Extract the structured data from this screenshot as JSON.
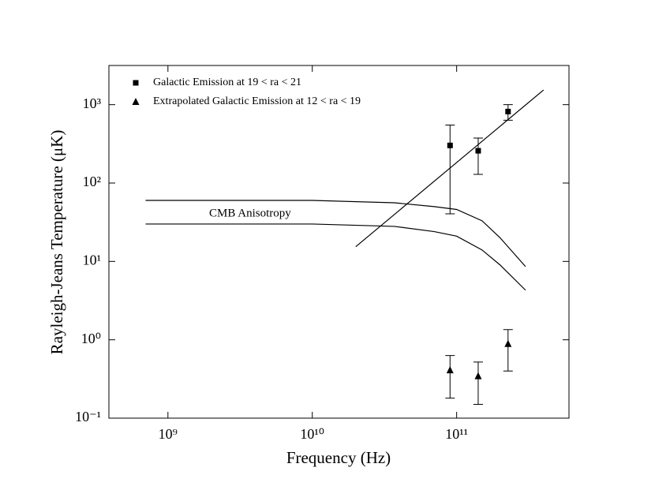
{
  "chart_data": {
    "type": "scatter",
    "xlabel": "Frequency (Hz)",
    "ylabel": "Rayleigh-Jeans Temperature (μK)",
    "log_x": true,
    "log_y": true,
    "legend": "upper left",
    "xlim": [
      390000000.0,
      600000000000.0
    ],
    "ylim": [
      0.1,
      3162
    ],
    "xticks": [
      {
        "value": 1000000000.0,
        "label": "10⁹"
      },
      {
        "value": 10000000000.0,
        "label": "10¹⁰"
      },
      {
        "value": 100000000000.0,
        "label": "10¹¹"
      }
    ],
    "yticks": [
      {
        "value": 0.1,
        "label": "10⁻¹"
      },
      {
        "value": 1,
        "label": "10⁰"
      },
      {
        "value": 10,
        "label": "10¹"
      },
      {
        "value": 100,
        "label": "10²"
      },
      {
        "value": 1000,
        "label": "10³"
      }
    ],
    "annotations": [
      "CMB Anisotropy"
    ],
    "series": [
      {
        "name": "Galactic Emission at 19 < ra < 21",
        "marker": "square",
        "color": "#000000",
        "x": [
          90000000000.0,
          141000000000.0,
          227000000000.0
        ],
        "values": [
          302,
          258,
          817
        ],
        "lower": [
          40.5,
          129,
          633
        ],
        "upper": [
          550,
          375,
          1000
        ]
      },
      {
        "name": "Extrapolated Galactic Emission at 12 < ra < 19",
        "marker": "triangle",
        "color": "#000000",
        "x": [
          90000000000.0,
          141000000000.0,
          227000000000.0
        ],
        "values": [
          0.41,
          0.345,
          0.89
        ],
        "lower": [
          0.18,
          0.15,
          0.4
        ],
        "upper": [
          0.63,
          0.52,
          1.35
        ]
      },
      {
        "marker": "none",
        "line": true,
        "color": "#000000",
        "x": [
          20000000000.0,
          400000000000.0
        ],
        "values": [
          15.4,
          1540
        ]
      },
      {
        "marker": "none",
        "line": true,
        "color": "#000000",
        "x": [
          700000000.0,
          10000000000.0,
          37000000000.0,
          70000000000.0,
          100000000000.0,
          150000000000.0,
          200000000000.0,
          300000000000.0
        ],
        "values": [
          60,
          60,
          56,
          50,
          46,
          33,
          20,
          8.6
        ]
      },
      {
        "marker": "none",
        "line": true,
        "color": "#000000",
        "x": [
          700000000.0,
          10000000000.0,
          37000000000.0,
          70000000000.0,
          100000000000.0,
          150000000000.0,
          200000000000.0,
          300000000000.0
        ],
        "values": [
          30,
          30,
          28,
          24,
          21,
          14,
          9,
          4.3
        ]
      }
    ]
  }
}
